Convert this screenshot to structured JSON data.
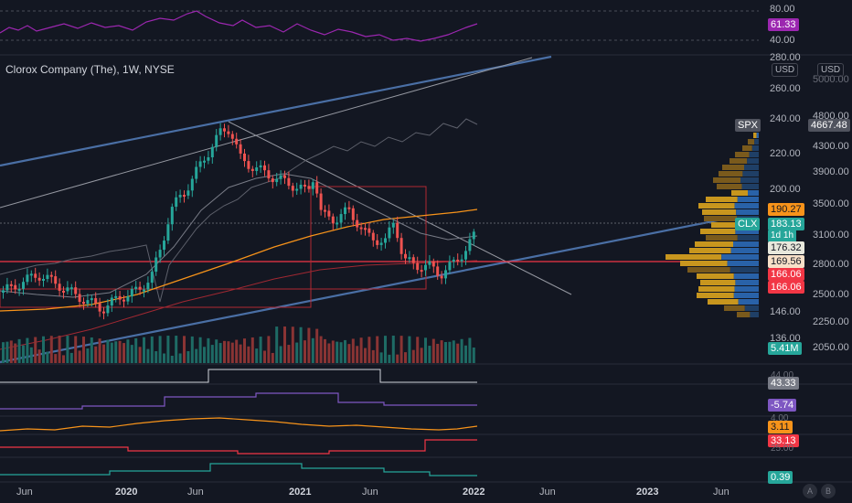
{
  "title": "Clorox Company (The), 1W, NYSE",
  "rsi": {
    "axis": [
      "80.00",
      "40.00"
    ],
    "value": "61.33"
  },
  "price_axis": [
    "280.00",
    "260.00",
    "240.00",
    "220.00",
    "200.00",
    "146.00",
    "136.00"
  ],
  "spx_axis": [
    "5000.00",
    "4800.00",
    "4300.00",
    "3900.00",
    "3500.00",
    "3100.00",
    "2800.00",
    "2500.00",
    "2250.00",
    "2050.00"
  ],
  "usd_left": "USD",
  "usd_right": "USD",
  "labels": {
    "spx": "SPX",
    "spx_value": "4667.48",
    "ma_value": "190.27",
    "clx": "CLX",
    "clx_price": "183.13",
    "clx_time": "1d 1h",
    "line_176": "176.32",
    "line_169": "169.56",
    "red_1": "166.06",
    "red_2": "166.06",
    "volume": "5.41M",
    "ind1": "43.33",
    "ind1_ghost": "44.00",
    "ind2": "-5.74",
    "ind3": "3.11",
    "ind3_ghost": "4.00",
    "ind4": "33.13",
    "ind4_ghost": "25.00",
    "ind5": "0.39"
  },
  "x_axis": [
    {
      "label": "Jun",
      "bold": false
    },
    {
      "label": "2020",
      "bold": true
    },
    {
      "label": "Jun",
      "bold": false
    },
    {
      "label": "2021",
      "bold": true
    },
    {
      "label": "Jun",
      "bold": false
    },
    {
      "label": "2022",
      "bold": true
    },
    {
      "label": "Jun",
      "bold": false
    },
    {
      "label": "2023",
      "bold": true
    },
    {
      "label": "Jun",
      "bold": false
    }
  ],
  "corner": {
    "a": "A",
    "b": "B"
  },
  "colors": {
    "bg": "#131722",
    "up": "#26a69a",
    "down": "#ef5350",
    "rsi": "#9c27b0",
    "trend": "#4a6fa5",
    "ma_orange": "#f7931a",
    "red_line": "#f23645",
    "spx_line": "#787b86"
  }
}
